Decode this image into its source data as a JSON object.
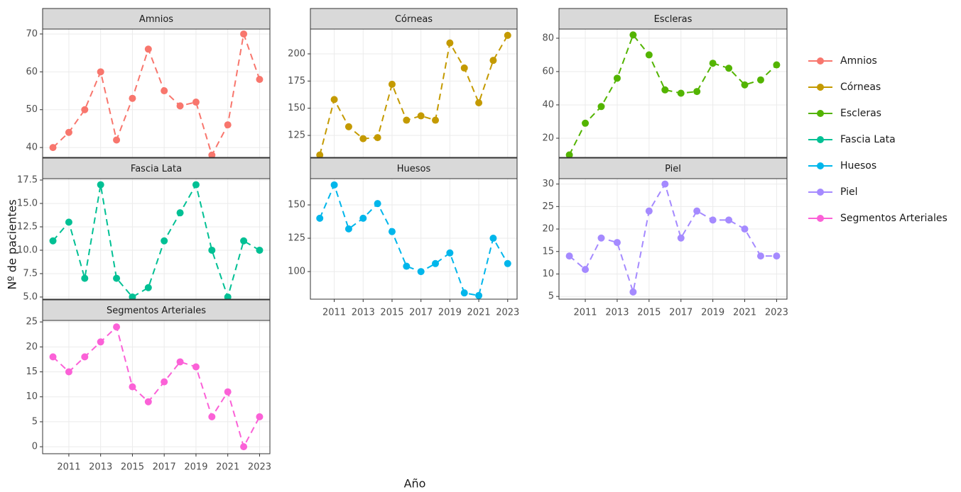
{
  "chart_data": {
    "type": "line",
    "x_label": "Año",
    "y_label": "Nº de pacientes",
    "x": [
      2010,
      2011,
      2012,
      2013,
      2014,
      2015,
      2016,
      2017,
      2018,
      2019,
      2020,
      2021,
      2022,
      2023
    ],
    "xlim": [
      2009.35,
      2023.65
    ],
    "xticks": [
      2011,
      2013,
      2015,
      2017,
      2019,
      2021,
      2023
    ],
    "grid": true,
    "series": [
      {
        "name": "Amnios",
        "color": "#F8766D",
        "values": [
          40,
          44,
          50,
          60,
          42,
          53,
          66,
          55,
          51,
          52,
          38,
          46,
          70,
          58
        ],
        "ylim": [
          37.4,
          71.3
        ],
        "yticks": [
          40,
          50,
          60,
          70
        ]
      },
      {
        "name": "Córneas",
        "color": "#C49A00",
        "values": [
          107,
          158,
          133,
          122,
          123,
          172,
          139,
          143,
          139,
          210,
          187,
          155,
          194,
          217
        ],
        "ylim": [
          104.8,
          222.8
        ],
        "yticks": [
          125,
          150,
          175,
          200
        ]
      },
      {
        "name": "Escleras",
        "color": "#53B400",
        "values": [
          10,
          29,
          39,
          56,
          82,
          70,
          49,
          47,
          48,
          65,
          62,
          52,
          55,
          64
        ],
        "ylim": [
          8.5,
          85.5
        ],
        "yticks": [
          20,
          40,
          60,
          80
        ]
      },
      {
        "name": "Fascia Lata",
        "color": "#00C094",
        "values": [
          11,
          13,
          7,
          17,
          7,
          5,
          6,
          11,
          14,
          17,
          10,
          5,
          11,
          10
        ],
        "ylim": [
          4.77,
          17.65
        ],
        "yticks": [
          {
            "value": 5,
            "label": "5.0"
          },
          {
            "value": 7.5,
            "label": "7.5"
          },
          {
            "value": 10,
            "label": "10.0"
          },
          {
            "value": 12.5,
            "label": "12.5"
          },
          {
            "value": 15,
            "label": "15.0"
          },
          {
            "value": 17.5,
            "label": "17.5"
          }
        ]
      },
      {
        "name": "Huesos",
        "color": "#00B6EB",
        "values": [
          140,
          165,
          132,
          140,
          151,
          130,
          104,
          100,
          106,
          114,
          84,
          82,
          125,
          106
        ],
        "ylim": [
          79.3,
          169.7
        ],
        "yticks": [
          100,
          125,
          150
        ]
      },
      {
        "name": "Piel",
        "color": "#A58AFF",
        "values": [
          14,
          11,
          18,
          17,
          6,
          24,
          30,
          18,
          24,
          22,
          22,
          20,
          14,
          14
        ],
        "ylim": [
          4.4,
          31.2
        ],
        "yticks": [
          5,
          10,
          15,
          20,
          25,
          30
        ]
      },
      {
        "name": "Segmentos Arteriales",
        "color": "#FB61D7",
        "values": [
          18,
          15,
          18,
          21,
          24,
          12,
          9,
          13,
          17,
          16,
          6,
          11,
          0,
          6
        ],
        "ylim": [
          -1.4,
          25.3
        ],
        "yticks": [
          0,
          5,
          10,
          15,
          20,
          25
        ]
      }
    ]
  }
}
